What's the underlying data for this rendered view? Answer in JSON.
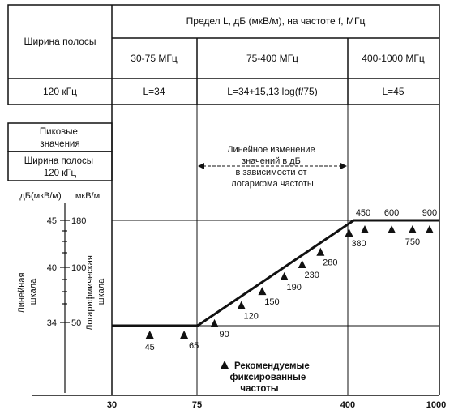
{
  "table": {
    "band_header": "Ширина полосы",
    "limit_header": "Предел L, дБ (мкВ/м), на частоте f, МГц",
    "ranges": [
      "30-75 МГц",
      "75-400 МГц",
      "400-1000 МГц"
    ],
    "bandwidth_value": "120 кГц",
    "formulas": [
      "L=34",
      "L=34+15,13 log(f/75)",
      "L=45"
    ]
  },
  "side_panel": {
    "peak_label": "Пиковые значения",
    "bandwidth_label": "Ширина полосы 120 кГц"
  },
  "axes": {
    "db_unit": "дБ(мкВ/м)",
    "uv_unit": "мкВ/м",
    "linear_scale_label": "Линейная шкала",
    "log_scale_label": "Логарифмическая шкала",
    "db_ticks": [
      "45",
      "40",
      "34"
    ],
    "uv_ticks": [
      "180",
      "100",
      "50"
    ],
    "x_ticks": [
      "30",
      "75",
      "400",
      "1000"
    ]
  },
  "annotation": "Линейное изменение значений в дБ в зависимости от логарифма частоты",
  "legend": "Рекомендуемые фиксированные частоты",
  "chart_data": {
    "type": "line",
    "x_scale": "log",
    "xlim": [
      30,
      1000
    ],
    "ylim": [
      30,
      47
    ],
    "limit_line": {
      "x": [
        30,
        75,
        400,
        1000
      ],
      "y": [
        34,
        34,
        45,
        45
      ]
    },
    "markers": [
      {
        "f": 45,
        "label": "45"
      },
      {
        "f": 65,
        "label": "65"
      },
      {
        "f": 90,
        "label": "90"
      },
      {
        "f": 120,
        "label": "120"
      },
      {
        "f": 150,
        "label": "150"
      },
      {
        "f": 190,
        "label": "190"
      },
      {
        "f": 230,
        "label": "230"
      },
      {
        "f": 280,
        "label": "280"
      },
      {
        "f": 380,
        "label": "380"
      },
      {
        "f": 450,
        "label": "450"
      },
      {
        "f": 600,
        "label": "600"
      },
      {
        "f": 750,
        "label": "750"
      },
      {
        "f": 900,
        "label": "900"
      }
    ]
  }
}
